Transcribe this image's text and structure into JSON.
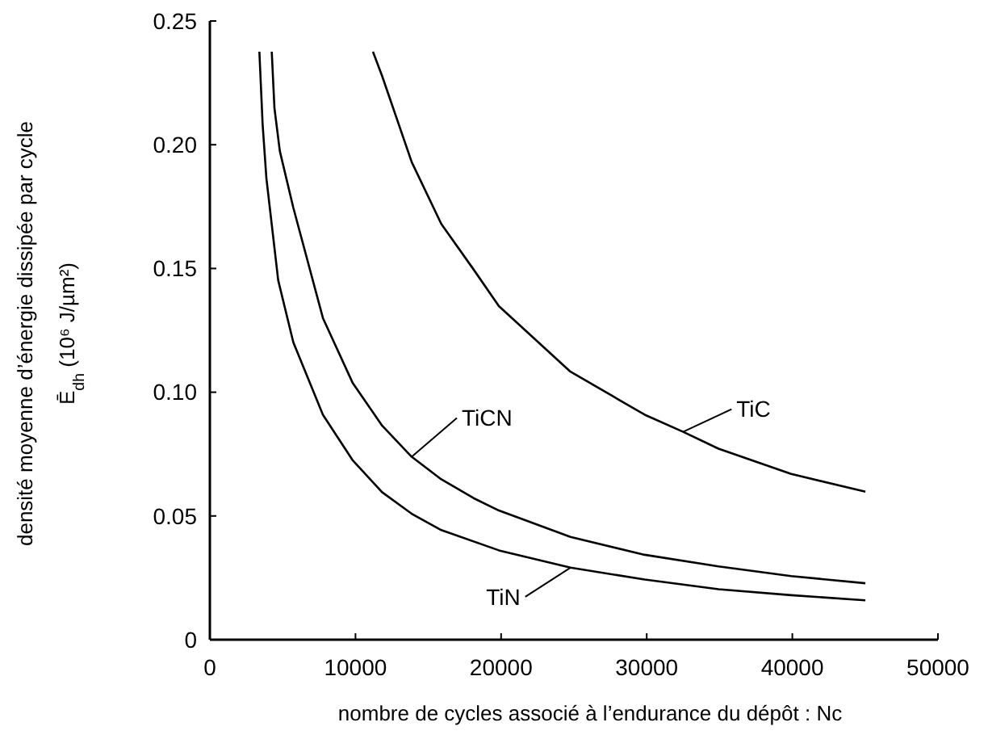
{
  "chart_data": {
    "type": "line",
    "xlabel": "nombre de cycles associé à l’endurance du dépôt : Nc",
    "ylabel": [
      "densité moyenne d’énergie dissipée par cycle",
      "Ē$_{dh}$ (10⁶ J/µm²)"
    ],
    "xlim": [
      0,
      50000
    ],
    "ylim": [
      0,
      0.25
    ],
    "xticks": [
      0,
      10000,
      20000,
      30000,
      40000,
      50000
    ],
    "yticks": [
      0,
      0.05,
      {
        "value": 0.1,
        "label": "0.10"
      },
      0.15,
      {
        "value": 0.2,
        "label": "0.20"
      },
      0.25
    ],
    "grid": false,
    "marker": "none",
    "line_style": "solid",
    "series": [
      {
        "name": "TiC",
        "color": "#000000",
        "x": [
          11199,
          11827,
          13860,
          15893,
          18110,
          19848,
          24763,
          29864,
          32500,
          34927,
          39917,
          45017
        ],
        "values": [
          0.2376,
          0.2278,
          0.193,
          0.168,
          0.1496,
          0.1348,
          0.1083,
          0.0909,
          0.084,
          0.0772,
          0.067,
          0.0598
        ]
      },
      {
        "name": "TiCN",
        "color": "#000000",
        "x": [
          4250,
          4435,
          4805,
          5729,
          7762,
          9794,
          11827,
          13860,
          15893,
          18110,
          19848,
          24763,
          29864,
          34927,
          39917,
          45017
        ],
        "values": [
          0.2376,
          0.2148,
          0.1974,
          0.1746,
          0.13,
          0.1039,
          0.0865,
          0.0739,
          0.0648,
          0.0572,
          0.0522,
          0.0415,
          0.0343,
          0.0296,
          0.0257,
          0.0228
        ]
      },
      {
        "name": "TiN",
        "color": "#000000",
        "x": [
          3400,
          3622,
          3881,
          4694,
          5729,
          7762,
          9794,
          11827,
          13860,
          15893,
          19848,
          24763,
          29864,
          34927,
          39917,
          45017
        ],
        "values": [
          0.2376,
          0.2083,
          0.1865,
          0.1452,
          0.1202,
          0.0909,
          0.0726,
          0.0596,
          0.0509,
          0.0443,
          0.0361,
          0.0291,
          0.0243,
          0.0204,
          0.018,
          0.0159
        ]
      }
    ]
  }
}
